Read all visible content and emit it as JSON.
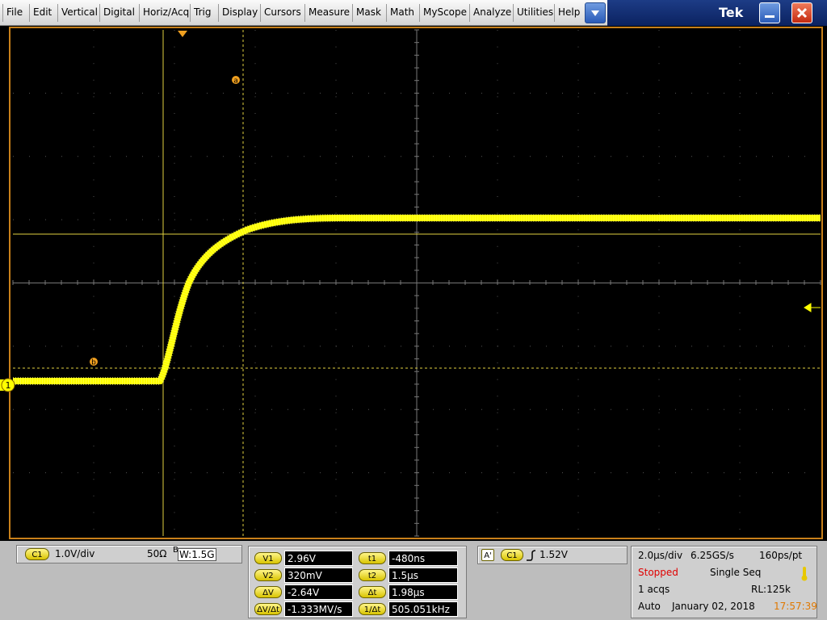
{
  "menu": [
    "File",
    "Edit",
    "Vertical",
    "Digital",
    "Horiz/Acq",
    "Trig",
    "Display",
    "Cursors",
    "Measure",
    "Mask",
    "Math",
    "MyScope",
    "Analyze",
    "Utilities",
    "Help"
  ],
  "brand": "Tek",
  "graticule": {
    "cursor_labels": [
      "a",
      "b"
    ],
    "channel_marker": "1"
  },
  "channel": {
    "badge": "C1",
    "scale": "1.0V/div",
    "impedance": "50Ω",
    "bw_label": "B",
    "bw_value": "W:1.5G"
  },
  "cursors": {
    "rows": [
      [
        {
          "label": "V1",
          "value": "2.96V"
        },
        {
          "label": "t1",
          "value": "-480ns"
        }
      ],
      [
        {
          "label": "V2",
          "value": "320mV"
        },
        {
          "label": "t2",
          "value": "1.5µs"
        }
      ],
      [
        {
          "label": "ΔV",
          "value": "-2.64V"
        },
        {
          "label": "Δt",
          "value": "1.98µs"
        }
      ],
      [
        {
          "label": "ΔV/Δt",
          "value": "-1.333MV/s"
        },
        {
          "label": "1/Δt",
          "value": "505.051kHz"
        }
      ]
    ]
  },
  "trigger": {
    "source_badge": "A'",
    "channel_badge": "C1",
    "level": "1.52V"
  },
  "acquisition": {
    "rows": [
      [
        "2.0µs/div",
        "6.25GS/s",
        "160ps/pt"
      ],
      [
        "Stopped",
        "Single Seq"
      ],
      [
        "1 acqs",
        "RL:125k"
      ],
      [
        "Auto",
        "January 02, 2018",
        "17:57:39"
      ]
    ]
  }
}
